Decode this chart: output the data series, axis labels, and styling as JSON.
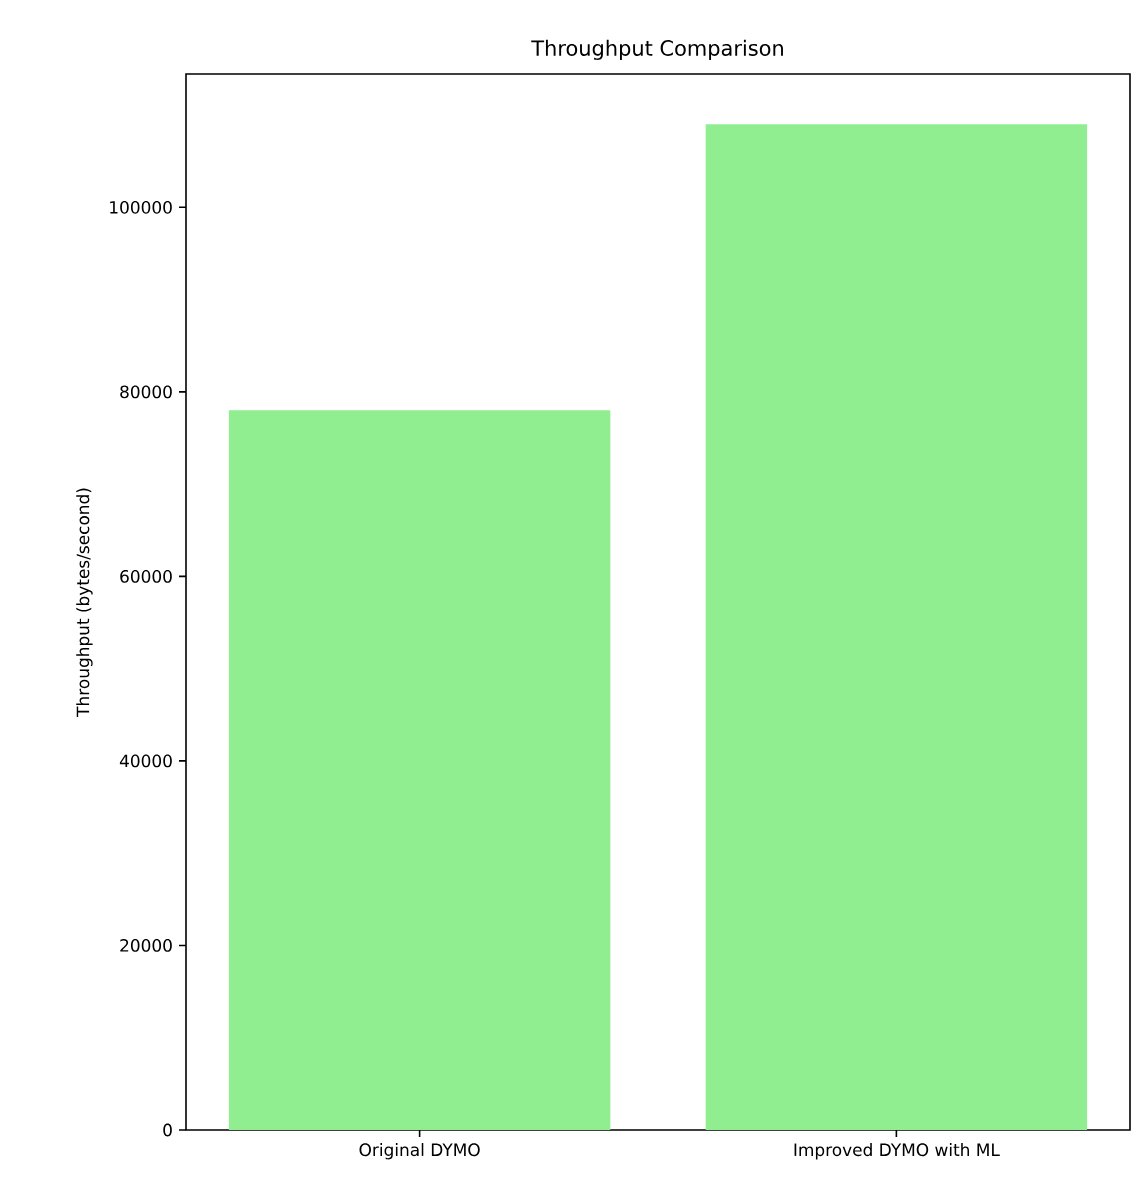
{
  "chart_data": {
    "type": "bar",
    "title": "Throughput Comparison",
    "ylabel": "Throughput (bytes/second)",
    "categories": [
      "Original DYMO",
      "Improved DYMO with ML"
    ],
    "values": [
      78000,
      109000
    ],
    "color": "#90ee90",
    "ylim": [
      0,
      114450
    ],
    "yticks": [
      0,
      20000,
      40000,
      60000,
      80000,
      100000
    ]
  }
}
